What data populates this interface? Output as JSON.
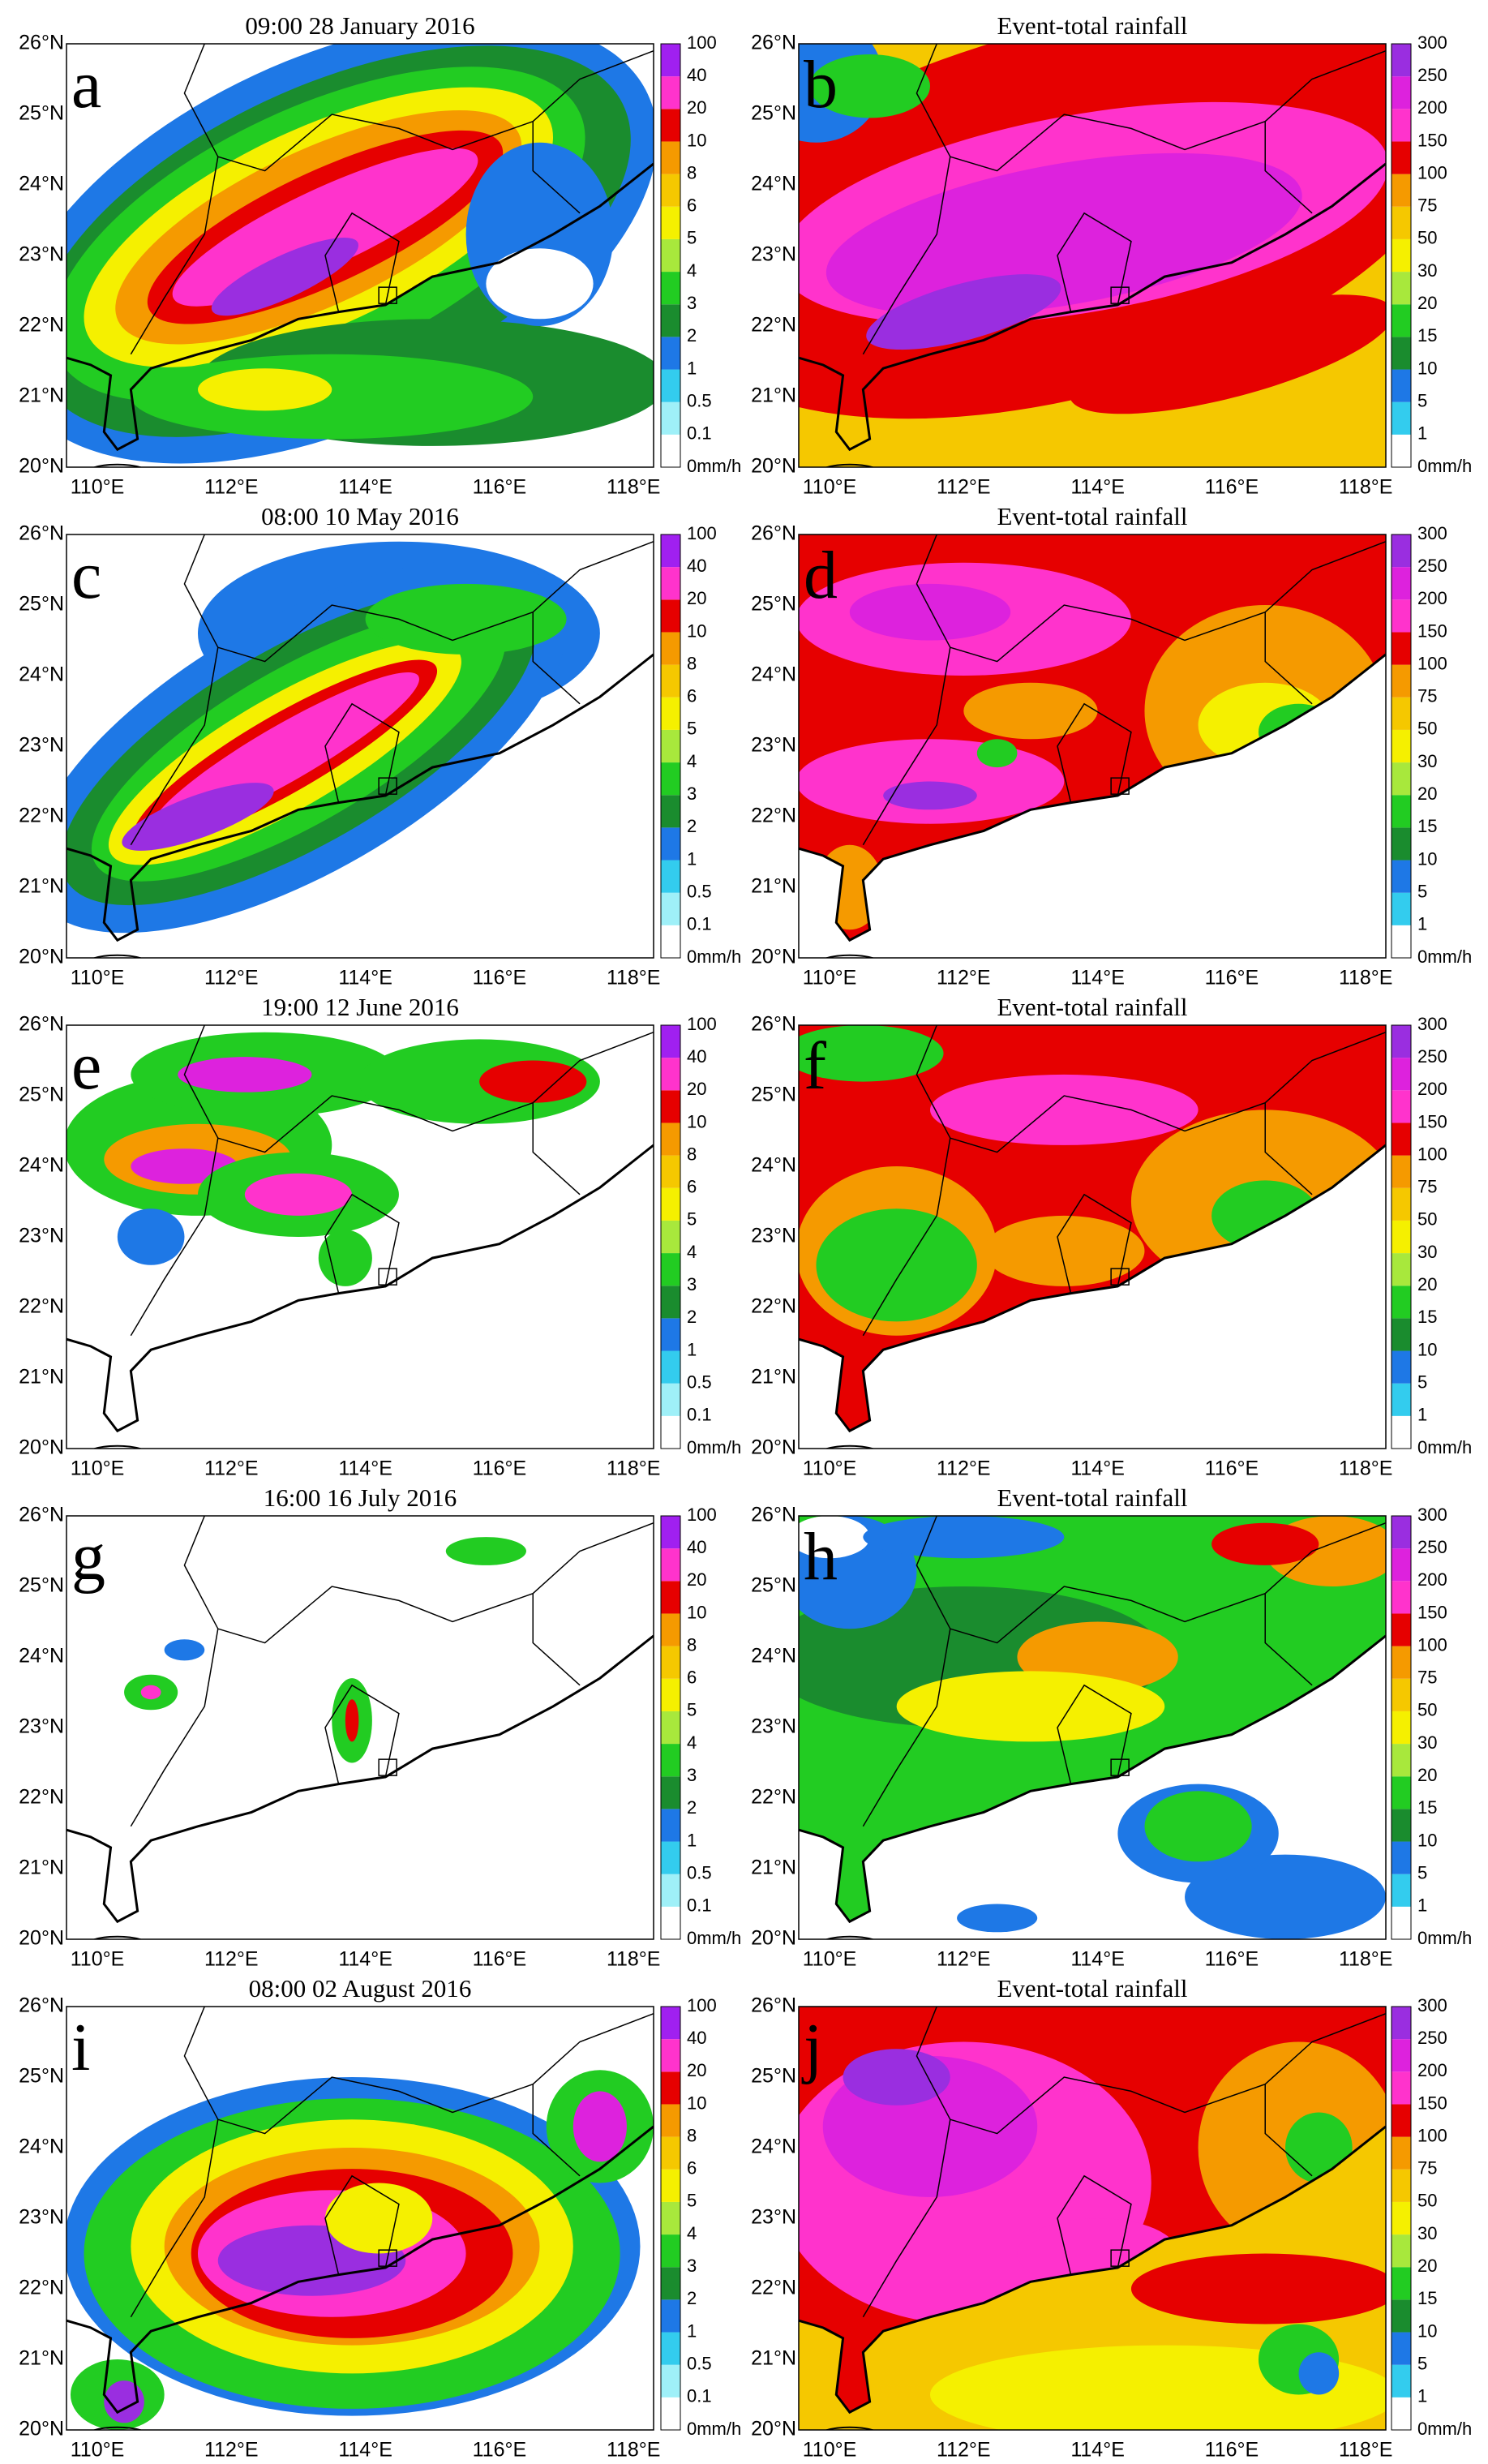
{
  "panels": [
    {
      "letter": "a",
      "title": "09:00 28 January 2016",
      "scale": "rate"
    },
    {
      "letter": "b",
      "title": "Event-total rainfall",
      "scale": "total"
    },
    {
      "letter": "c",
      "title": "08:00 10  May 2016",
      "scale": "rate"
    },
    {
      "letter": "d",
      "title": "Event-total rainfall",
      "scale": "total"
    },
    {
      "letter": "e",
      "title": "19:00 12 June 2016",
      "scale": "rate"
    },
    {
      "letter": "f",
      "title": "Event-total rainfall",
      "scale": "total"
    },
    {
      "letter": "g",
      "title": "16:00 16 July 2016",
      "scale": "rate"
    },
    {
      "letter": "h",
      "title": "Event-total rainfall",
      "scale": "total"
    },
    {
      "letter": "i",
      "title": "08:00 02 August 2016",
      "scale": "rate"
    },
    {
      "letter": "j",
      "title": "Event-total rainfall",
      "scale": "total"
    }
  ],
  "lat_labels": [
    "20°N",
    "21°N",
    "22°N",
    "23°N",
    "24°N",
    "25°N",
    "26°N"
  ],
  "lon_labels": [
    "110°E",
    "112°E",
    "114°E",
    "116°E",
    "118°E"
  ],
  "scales": {
    "rate": {
      "labels": [
        "0mm/h",
        "0.1",
        "0.5",
        "1",
        "2",
        "3",
        "4",
        "5",
        "6",
        "8",
        "10",
        "20",
        "40",
        "100"
      ],
      "colors": [
        "#ffffff",
        "#9ff0f8",
        "#33ccee",
        "#1e78e6",
        "#1a8c2e",
        "#22cc22",
        "#a8e83c",
        "#f5f000",
        "#f5c800",
        "#f59a00",
        "#e60000",
        "#ff33cc",
        "#a020f0"
      ]
    },
    "total": {
      "labels": [
        "0mm/h",
        "1",
        "5",
        "10",
        "15",
        "20",
        "30",
        "50",
        "75",
        "100",
        "150",
        "200",
        "250",
        "300"
      ],
      "colors": [
        "#ffffff",
        "#33ccee",
        "#1e78e6",
        "#1a8c2e",
        "#22cc22",
        "#a8e83c",
        "#f5f000",
        "#f5c800",
        "#f59a00",
        "#e60000",
        "#ff33cc",
        "#dd22dd",
        "#9a2ee0"
      ]
    }
  }
}
